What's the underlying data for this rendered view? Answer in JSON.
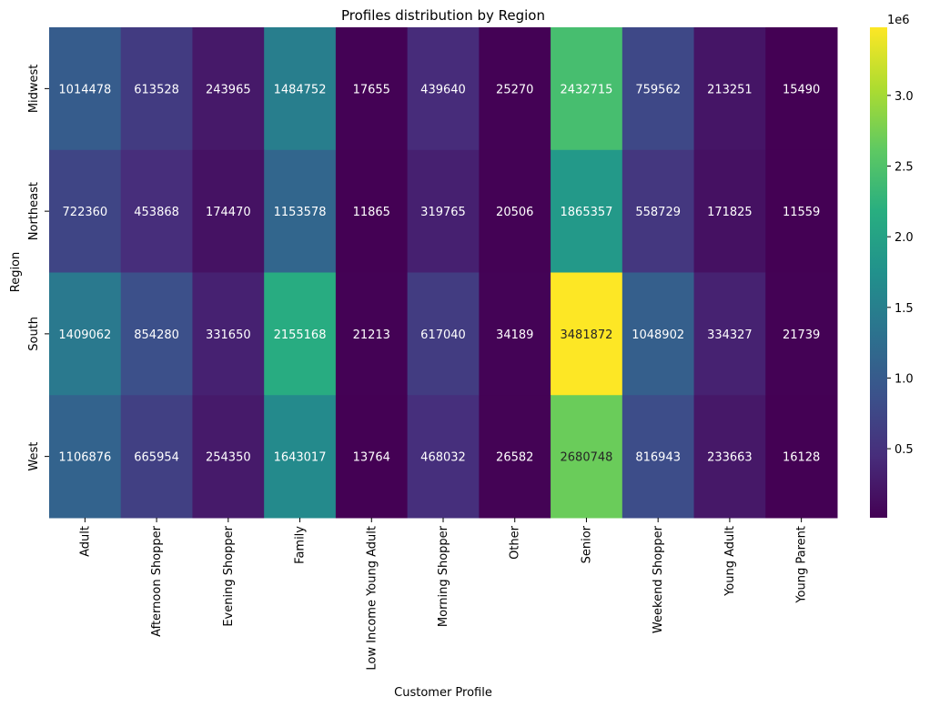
{
  "chart_data": {
    "type": "heatmap",
    "title": "Profiles distribution by Region",
    "xlabel": "Customer Profile",
    "ylabel": "Region",
    "x_categories": [
      "Adult",
      "Afternoon Shopper",
      "Evening Shopper",
      "Family",
      "Low Income Young Adult",
      "Morning Shopper",
      "Other",
      "Senior",
      "Weekend Shopper",
      "Young Adult",
      "Young Parent"
    ],
    "y_categories": [
      "Midwest",
      "Northeast",
      "South",
      "West"
    ],
    "values": [
      [
        1014478,
        613528,
        243965,
        1484752,
        17655,
        439640,
        25270,
        2432715,
        759562,
        213251,
        15490
      ],
      [
        722360,
        453868,
        174470,
        1153578,
        11865,
        319765,
        20506,
        1865357,
        558729,
        171825,
        11559
      ],
      [
        1409062,
        854280,
        331650,
        2155168,
        21213,
        617040,
        34189,
        3481872,
        1048902,
        334327,
        21739
      ],
      [
        1106876,
        665954,
        254350,
        1643017,
        13764,
        468032,
        26582,
        2680748,
        816943,
        233663,
        16128
      ]
    ],
    "colormap": "viridis",
    "colorbar": {
      "min": 11559,
      "max": 3481872,
      "ticks": [
        500000,
        1000000,
        1500000,
        2000000,
        2500000,
        3000000
      ],
      "tick_labels": [
        "0.5",
        "1.0",
        "1.5",
        "2.0",
        "2.5",
        "3.0"
      ],
      "offset_label": "1e6"
    }
  }
}
